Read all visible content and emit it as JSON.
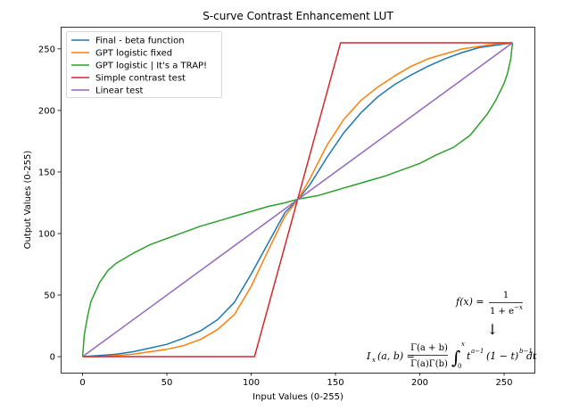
{
  "chart_data": {
    "type": "line",
    "title": "S-curve Contrast Enhancement LUT",
    "xlabel": "Input Values (0-255)",
    "ylabel": "Output Values (0-255)",
    "xlim": [
      -13,
      268
    ],
    "ylim": [
      -13,
      268
    ],
    "xticks": [
      0,
      50,
      100,
      150,
      200,
      250
    ],
    "yticks": [
      0,
      50,
      100,
      150,
      200,
      250
    ],
    "grid": false,
    "legend_position": "upper left",
    "series": [
      {
        "name": "Final - beta function",
        "color": "#1f77b4",
        "x": [
          0,
          10,
          20,
          30,
          40,
          50,
          60,
          70,
          80,
          90,
          100,
          110,
          120,
          128,
          135,
          145,
          155,
          165,
          175,
          185,
          195,
          205,
          215,
          225,
          235,
          245,
          255
        ],
        "y": [
          0,
          1,
          2,
          4,
          7,
          10,
          15,
          21,
          30,
          44,
          67,
          92,
          117,
          128,
          140,
          162,
          182,
          198,
          211,
          221,
          229,
          236,
          242,
          247,
          251,
          253,
          255
        ]
      },
      {
        "name": "GPT logistic fixed",
        "color": "#ff7f0e",
        "x": [
          0,
          10,
          20,
          30,
          40,
          50,
          60,
          70,
          80,
          90,
          100,
          110,
          120,
          128,
          135,
          145,
          155,
          165,
          175,
          185,
          195,
          205,
          215,
          225,
          235,
          245,
          255
        ],
        "y": [
          0,
          0,
          1,
          2,
          4,
          6,
          9,
          14,
          22,
          34,
          57,
          86,
          114,
          128,
          145,
          172,
          193,
          208,
          219,
          228,
          236,
          242,
          246,
          250,
          252,
          254,
          255
        ]
      },
      {
        "name": "GPT logistic | It's a TRAP!",
        "color": "#2ca02c",
        "x": [
          0,
          1,
          3,
          5,
          10,
          15,
          20,
          30,
          40,
          50,
          60,
          70,
          80,
          90,
          100,
          110,
          120,
          128,
          140,
          150,
          160,
          170,
          180,
          190,
          200,
          210,
          220,
          230,
          240,
          245,
          250,
          252,
          254,
          255
        ],
        "y": [
          0,
          18,
          33,
          45,
          60,
          70,
          76,
          84,
          91,
          96,
          101,
          106,
          110,
          114,
          118,
          122,
          125,
          128,
          131,
          135,
          139,
          143,
          147,
          152,
          157,
          164,
          170,
          180,
          197,
          208,
          222,
          230,
          242,
          255
        ]
      },
      {
        "name": "Simple contrast test",
        "color": "#d62728",
        "x": [
          0,
          102,
          153,
          255
        ],
        "y": [
          0,
          0,
          255,
          255
        ]
      },
      {
        "name": "Linear test",
        "color": "#9467bd",
        "x": [
          0,
          255
        ],
        "y": [
          0,
          255
        ]
      }
    ],
    "annotations": {
      "logistic_formula": {
        "lhs": "f(x) =",
        "numerator": "1",
        "denominator": "1 + e",
        "exponent": "−x"
      },
      "arrow": "↓",
      "beta_formula": {
        "lhs": "I",
        "lhs_sub": "x",
        "lhs_args": "(a, b) =",
        "numerator": "Γ(a + b)",
        "denominator": "Γ(a)Γ(b)",
        "integral": "∫",
        "upper": "x",
        "lower": "0",
        "integrand_t1": "t",
        "exp1": "a−1",
        "integrand_t2": "(1 − t)",
        "exp2": "b−1",
        "dt": "dt"
      }
    }
  }
}
